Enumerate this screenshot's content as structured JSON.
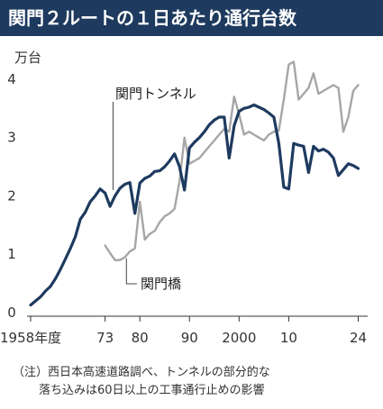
{
  "header": {
    "title": "関門２ルートの１日あたり通行台数"
  },
  "chart_data": {
    "type": "line",
    "title": "関門２ルートの１日あたり通行台数",
    "ylabel": "万台",
    "xlabel": "",
    "ylim": [
      0,
      4.4
    ],
    "xlim": [
      1958,
      2025
    ],
    "yticks": [
      0,
      1,
      2,
      3,
      4
    ],
    "xticks": [
      {
        "value": 1958,
        "label": "1958年度"
      },
      {
        "value": 1973,
        "label": "73"
      },
      {
        "value": 1980,
        "label": "80"
      },
      {
        "value": 1990,
        "label": "90"
      },
      {
        "value": 2000,
        "label": "2000"
      },
      {
        "value": 2010,
        "label": "10"
      },
      {
        "value": 2024,
        "label": "24"
      }
    ],
    "grid": false,
    "series": [
      {
        "name": "関門トンネル",
        "color": "#1e3a5f",
        "x": [
          1958,
          1959,
          1960,
          1961,
          1962,
          1963,
          1964,
          1965,
          1966,
          1967,
          1968,
          1969,
          1970,
          1971,
          1972,
          1973,
          1974,
          1975,
          1976,
          1977,
          1978,
          1979,
          1980,
          1981,
          1982,
          1983,
          1984,
          1985,
          1986,
          1987,
          1988,
          1989,
          1990,
          1991,
          1992,
          1993,
          1994,
          1995,
          1996,
          1997,
          1998,
          1999,
          2000,
          2001,
          2002,
          2003,
          2004,
          2005,
          2006,
          2007,
          2008,
          2009,
          2010,
          2011,
          2012,
          2013,
          2014,
          2015,
          2016,
          2017,
          2018,
          2019,
          2020,
          2021,
          2022,
          2023,
          2024
        ],
        "values": [
          0.13,
          0.2,
          0.27,
          0.37,
          0.45,
          0.58,
          0.74,
          0.92,
          1.1,
          1.3,
          1.6,
          1.72,
          1.9,
          2.0,
          2.12,
          2.05,
          1.82,
          2.0,
          2.13,
          2.2,
          2.23,
          1.7,
          2.22,
          2.3,
          2.34,
          2.42,
          2.43,
          2.5,
          2.6,
          2.72,
          2.5,
          2.1,
          2.82,
          2.92,
          3.0,
          3.1,
          3.22,
          3.3,
          3.35,
          3.35,
          2.65,
          3.2,
          3.45,
          3.5,
          3.52,
          3.56,
          3.52,
          3.48,
          3.42,
          3.35,
          2.9,
          2.15,
          2.12,
          2.9,
          2.87,
          2.85,
          2.4,
          2.85,
          2.77,
          2.8,
          2.75,
          2.65,
          2.35,
          2.45,
          2.55,
          2.52,
          2.47
        ]
      },
      {
        "name": "関門橋",
        "color": "#a6a6a6",
        "x": [
          1973,
          1974,
          1975,
          1976,
          1977,
          1978,
          1979,
          1980,
          1981,
          1982,
          1983,
          1984,
          1985,
          1986,
          1987,
          1988,
          1989,
          1990,
          1991,
          1992,
          1993,
          1994,
          1995,
          1996,
          1997,
          1998,
          1999,
          2000,
          2001,
          2002,
          2003,
          2004,
          2005,
          2006,
          2007,
          2008,
          2009,
          2010,
          2011,
          2012,
          2013,
          2014,
          2015,
          2016,
          2017,
          2018,
          2019,
          2020,
          2021,
          2022,
          2023,
          2024
        ],
        "values": [
          1.15,
          1.02,
          0.9,
          0.9,
          0.95,
          1.05,
          1.1,
          1.9,
          1.25,
          1.35,
          1.4,
          1.55,
          1.65,
          1.7,
          1.78,
          2.25,
          3.0,
          2.55,
          2.6,
          2.65,
          2.75,
          2.85,
          2.95,
          3.05,
          3.15,
          3.1,
          3.7,
          3.4,
          3.05,
          3.1,
          3.05,
          3.0,
          2.95,
          3.05,
          3.1,
          3.12,
          3.65,
          4.25,
          4.3,
          3.65,
          3.75,
          3.85,
          4.1,
          3.75,
          3.8,
          3.85,
          3.9,
          3.85,
          3.1,
          3.35,
          3.8,
          3.9
        ]
      }
    ],
    "annotations": [
      {
        "text": "関門トンネル",
        "series": 0
      },
      {
        "text": "関門橋",
        "series": 1
      }
    ]
  },
  "note": {
    "line1": "（注）西日本高速道路調べ、トンネルの部分的な",
    "line2": "落ち込みは60日以上の工事通行止めの影響"
  }
}
